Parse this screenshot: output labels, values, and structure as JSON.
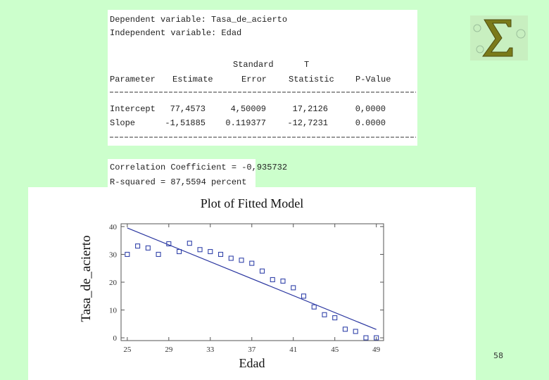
{
  "output": {
    "dependent": "Dependent variable: Tasa_de_acierto",
    "independent": "Independent variable: Edad",
    "table": {
      "header_top": [
        "Standard",
        "T"
      ],
      "header": [
        "Parameter",
        "Estimate",
        "Error",
        "Statistic",
        "P-Value"
      ],
      "rows": [
        [
          "Intercept",
          "77,4573",
          "4,50009",
          "17,2126",
          "0,0000"
        ],
        [
          "Slope",
          "-1,51885",
          "0.119377",
          "-12,7231",
          "0.0000"
        ]
      ]
    },
    "correlation": "Correlation Coefficient = -0,935732",
    "r_squared": "R-squared = 87,5594 percent"
  },
  "page_number": "58",
  "chart_data": {
    "type": "scatter",
    "title": "Plot of Fitted Model",
    "x_label": "Edad",
    "y_label": "Tasa_de_acierto",
    "x": [
      25,
      26,
      27,
      28,
      29,
      30,
      31,
      32,
      33,
      34,
      35,
      36,
      37,
      38,
      39,
      40,
      41,
      42,
      43,
      44,
      45,
      46,
      47,
      48,
      49
    ],
    "values": [
      30,
      33,
      32.3,
      30,
      33.8,
      31,
      34,
      31.7,
      31,
      30,
      28.6,
      27.9,
      26.8,
      24,
      20.9,
      20.4,
      18,
      15,
      11.1,
      8.3,
      7.2,
      3.1,
      2.3,
      0,
      0
    ],
    "color": "#3344aa",
    "fit_line": {
      "x": [
        25,
        49
      ],
      "values": [
        39.5,
        3.0
      ],
      "color": "#2a36a0"
    },
    "xlim": [
      24.4,
      49.7
    ],
    "ylim": [
      -1,
      41
    ],
    "xticks": [
      25,
      29,
      33,
      37,
      41,
      45,
      49
    ],
    "yticks": [
      0,
      10,
      20,
      30,
      40
    ]
  }
}
